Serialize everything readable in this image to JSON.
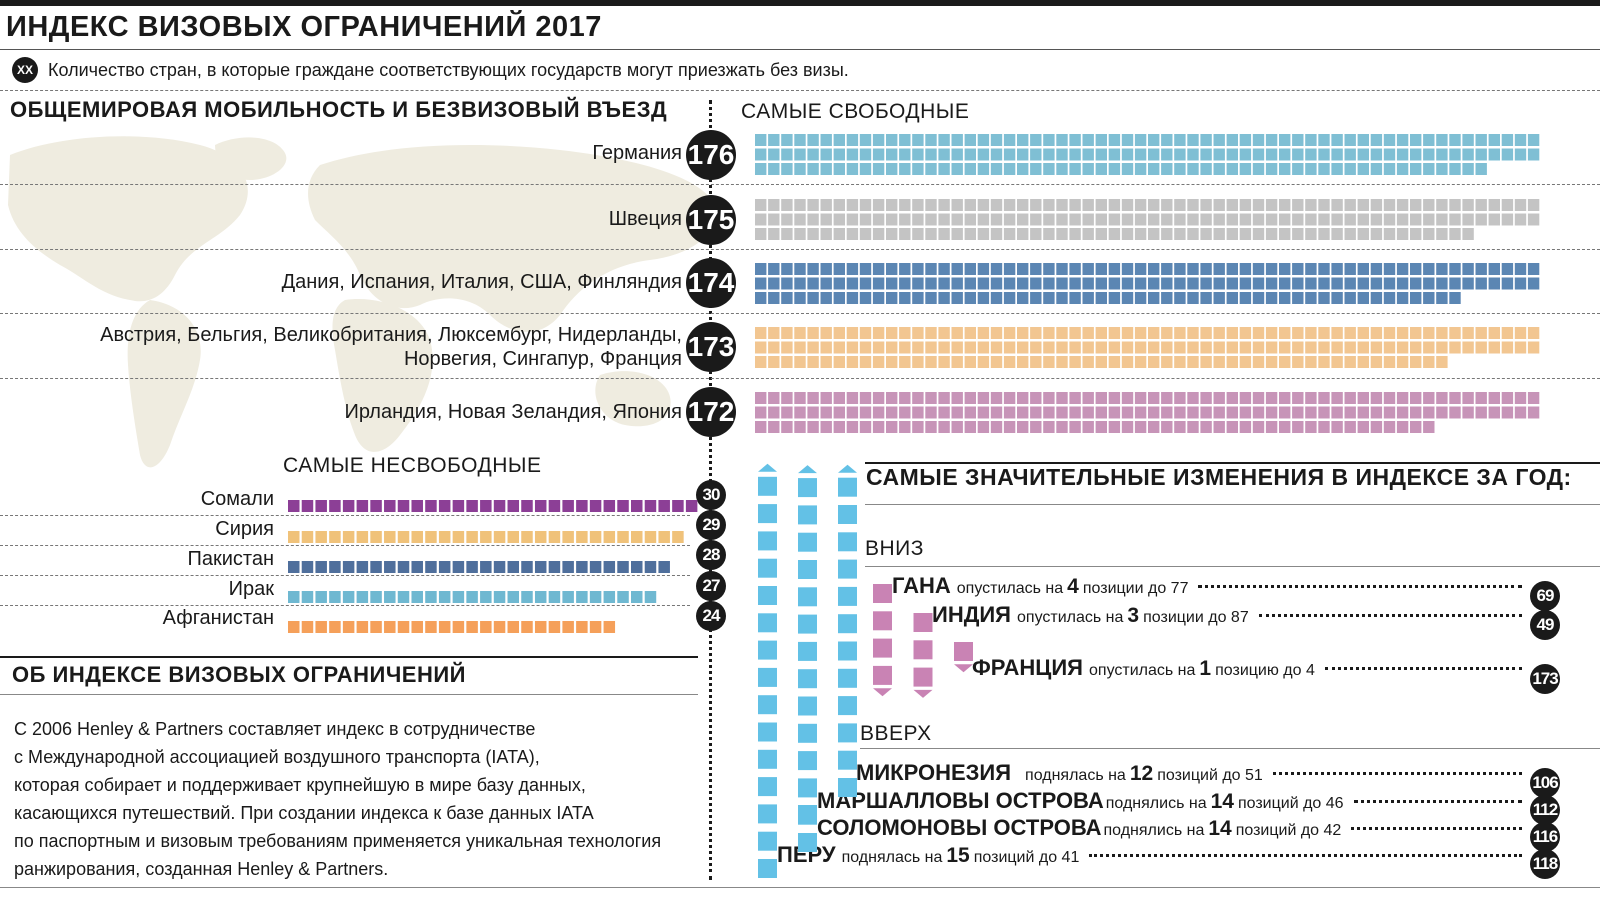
{
  "title": "ИНДЕКС ВИЗОВЫХ ОГРАНИЧЕНИЙ 2017",
  "legend": {
    "badge": "XX",
    "text": "Количество стран, в которые граждане соответствующих государств могут приезжать без визы."
  },
  "sections": {
    "mobility": "ОБЩЕМИРОВАЯ МОБИЛЬНОСТЬ И БЕЗВИЗОВЫЙ ВЪЕЗД",
    "freest": "САМЫЕ СВОБОДНЫЕ",
    "least_free": "САМЫЕ НЕСВОБОДНЫЕ",
    "about": "ОБ ИНДЕКСЕ ВИЗОВЫХ ОГРАНИЧЕНИЙ",
    "changes": "САМЫЕ ЗНАЧИТЕЛЬНЫЕ ИЗМЕНЕНИЯ В ИНДЕКСЕ ЗА ГОД:",
    "down": "ВНИЗ",
    "up": "ВВЕРХ"
  },
  "about_lines": [
    "С 2006 Henley & Partners составляет индекс в сотрудничестве",
    "с Международной ассоциацией воздушного транспорта (IATA),",
    "которая собирает и поддерживает крупнейшую в мире базу данных,",
    "касающихся путешествий. При создании индекса к базе данных IATA",
    "по паспортным и визовым требованиям применяется уникальная технология",
    "ранжирования, созданная Henley & Partners."
  ],
  "chart_data": [
    {
      "type": "bar",
      "title": "САМЫЕ СВОБОДНЫЕ",
      "categories": [
        "Германия",
        "Швеция",
        "Дания, Испания, Италия, США, Финляндия",
        "Австрия, Бельгия, Великобритания, Люксембург, Нидерланды, Норвегия, Сингапур, Франция",
        "Ирландия, Новая Зеландия, Япония"
      ],
      "label_lines": [
        [
          "Германия"
        ],
        [
          "Швеция"
        ],
        [
          "Дания, Испания, Италия, США, Финляндия"
        ],
        [
          "Австрия, Бельгия, Великобритания, Люксембург, Нидерланды,",
          "Норвегия, Сингапур, Франция"
        ],
        [
          "Ирландия, Новая Зеландия, Япония"
        ]
      ],
      "values": [
        176,
        175,
        174,
        173,
        172
      ],
      "colors": [
        "#7fbfd4",
        "#c4c4c4",
        "#5b86b3",
        "#f2c691",
        "#c794b8"
      ]
    },
    {
      "type": "bar",
      "title": "САМЫЕ НЕСВОБОДНЫЕ",
      "categories": [
        "Сомали",
        "Сирия",
        "Пакистан",
        "Ирак",
        "Афганистан"
      ],
      "values": [
        30,
        29,
        28,
        27,
        24
      ],
      "colors": [
        "#8c3f96",
        "#f0c27a",
        "#4f6f9c",
        "#6fb8d1",
        "#f5a05a"
      ]
    },
    {
      "type": "table",
      "title": "САМЫЕ ЗНАЧИТЕЛЬНЫЕ ИЗМЕНЕНИЯ В ИНДЕКСЕ ЗА ГОД:",
      "down": [
        {
          "country": "ГАНА",
          "text": "опустилась на",
          "positions": 4,
          "tail": "позиции до 77",
          "value": 69
        },
        {
          "country": "ИНДИЯ",
          "text": "опустилась на",
          "positions": 3,
          "tail": "позиции до 87",
          "value": 49
        },
        {
          "country": "ФРАНЦИЯ",
          "text": "опустилась на",
          "positions": 1,
          "tail": "позицию до 4",
          "value": 173
        }
      ],
      "up": [
        {
          "country": "МИКРОНЕЗИЯ",
          "text": "поднялась на",
          "positions": 12,
          "tail": "позиций до 51",
          "value": 106
        },
        {
          "country": "МАРШАЛЛОВЫ ОСТРОВА",
          "text": "поднялись на",
          "positions": 14,
          "tail": "позиций до 46",
          "value": 112
        },
        {
          "country": "СОЛОМОНОВЫ ОСТРОВА",
          "text": "поднялись на",
          "positions": 14,
          "tail": "позиций до 42",
          "value": 116
        },
        {
          "country": "ПЕРУ",
          "text": "поднялась на",
          "positions": 15,
          "tail": "позиций до 41",
          "value": 118
        }
      ],
      "colors": {
        "down": "#c983b4",
        "up": "#63c1e6"
      }
    }
  ]
}
